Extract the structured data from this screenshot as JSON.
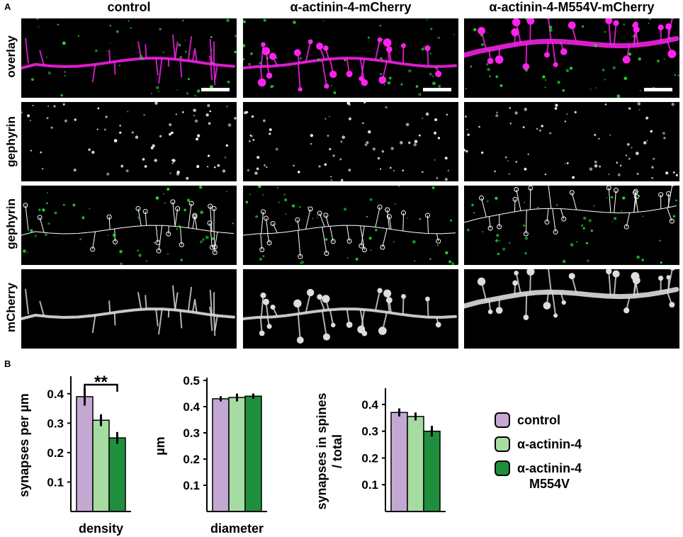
{
  "panel_a": {
    "letter": "A",
    "columns": [
      "control",
      "α-actinin-4-mCherry",
      "α-actinin-4-M554V-mCherry"
    ],
    "rows": [
      "overlay",
      "gephyrin",
      "gephyrin",
      "mCherry"
    ]
  },
  "panel_b": {
    "letter": "B"
  },
  "colors": {
    "control": "#c4a8d4",
    "actinin4": "#a6dca2",
    "m554v": "#1f8f3e",
    "green_puncta": "#22dd33",
    "magenta": "#ff22ee"
  },
  "legend": [
    {
      "label": "control",
      "series": "control"
    },
    {
      "label": "α-actinin-4",
      "series": "actinin4"
    },
    {
      "label": "α-actinin-4\nM554V",
      "series": "m554v"
    }
  ],
  "chart_data": [
    {
      "type": "bar",
      "ylabel": "synapses per µm",
      "xlabel": "density",
      "ylim": [
        0,
        0.45
      ],
      "yticks": [
        "0.1",
        "0.2",
        "0.3",
        "0.4"
      ],
      "categories": [
        "control",
        "α-actinin-4",
        "α-actinin-4 M554V"
      ],
      "values": [
        0.39,
        0.31,
        0.25
      ],
      "errors": [
        0.03,
        0.02,
        0.02
      ],
      "annotation": {
        "text": "**",
        "between": [
          "control",
          "α-actinin-4 M554V"
        ]
      }
    },
    {
      "type": "bar",
      "ylabel": "µm",
      "xlabel": "diameter",
      "ylim": [
        0,
        0.5
      ],
      "yticks": [
        "0.1",
        "0.2",
        "0.3",
        "0.4",
        "0.5"
      ],
      "categories": [
        "control",
        "α-actinin-4",
        "α-actinin-4 M554V"
      ],
      "values": [
        0.43,
        0.435,
        0.44
      ],
      "errors": [
        0.01,
        0.015,
        0.01
      ]
    },
    {
      "type": "bar",
      "ylabel": "synapses in spines / total",
      "xlabel": "",
      "ylim": [
        0,
        0.45
      ],
      "yticks": [
        "0.1",
        "0.2",
        "0.3",
        "0.4"
      ],
      "categories": [
        "control",
        "α-actinin-4",
        "α-actinin-4 M554V"
      ],
      "values": [
        0.37,
        0.355,
        0.3
      ],
      "errors": [
        0.015,
        0.015,
        0.02
      ]
    }
  ]
}
